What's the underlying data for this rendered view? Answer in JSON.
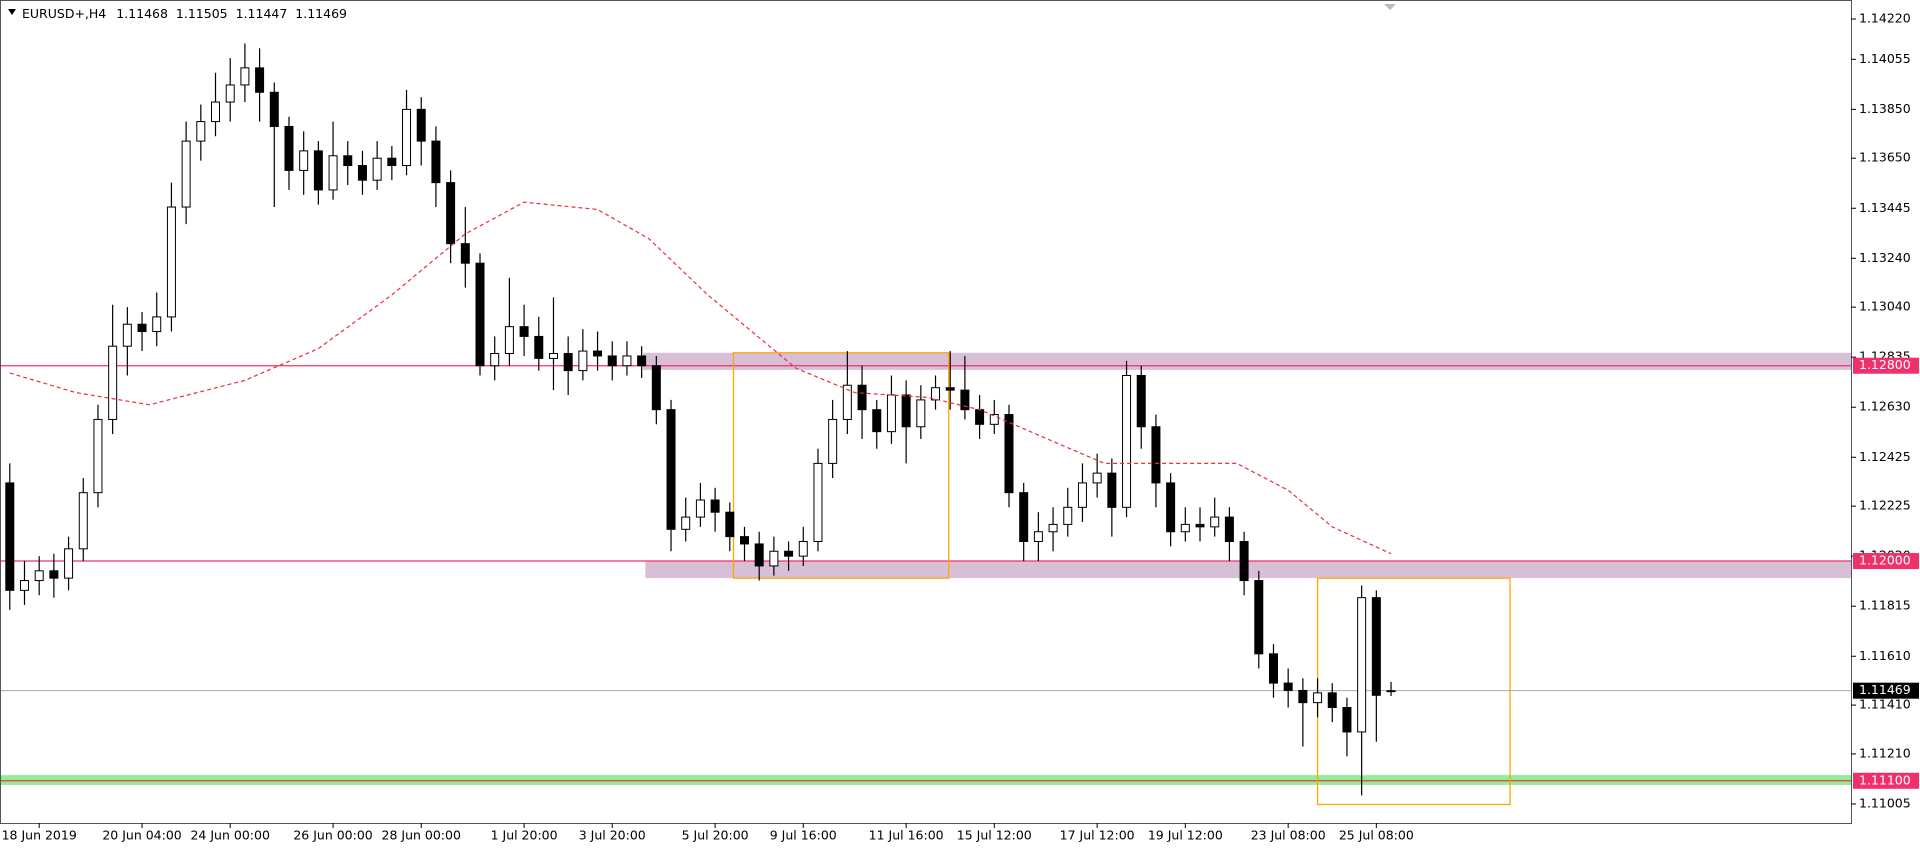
{
  "chart_data": {
    "type": "candlestick",
    "symbol": "EURUSD+,H4",
    "x": [
      null,
      null,
      "18 Jun 2019",
      null,
      null,
      null,
      null,
      null,
      null,
      "20 Jun 04:00",
      null,
      null,
      null,
      null,
      null,
      "24 Jun 00:00",
      null,
      null,
      null,
      null,
      null,
      null,
      "26 Jun 00:00",
      null,
      null,
      null,
      null,
      null,
      "28 Jun 00:00",
      null,
      null,
      null,
      null,
      null,
      null,
      "1 Jul 20:00",
      null,
      null,
      null,
      null,
      null,
      "3 Jul 20:00",
      null,
      null,
      null,
      null,
      null,
      null,
      "5 Jul 20:00",
      null,
      null,
      null,
      null,
      null,
      "9 Jul 16:00",
      null,
      null,
      null,
      null,
      null,
      null,
      "11 Jul 16:00",
      null,
      null,
      null,
      null,
      null,
      "15 Jul 12:00",
      null,
      null,
      null,
      null,
      null,
      null,
      "17 Jul 12:00",
      null,
      null,
      null,
      null,
      null,
      "19 Jul 12:00",
      null,
      null,
      null,
      null,
      null,
      null,
      "23 Jul 08:00",
      null,
      null,
      null,
      null,
      null,
      "25 Jul 08:00",
      null
    ],
    "open": [
      1.1232,
      1.1188,
      1.1192,
      1.1196,
      1.1193,
      1.1205,
      1.1228,
      1.1258,
      1.1288,
      1.1297,
      1.1294,
      1.13,
      1.1345,
      1.1372,
      1.138,
      1.1388,
      1.1395,
      1.1402,
      1.1392,
      1.1378,
      1.136,
      1.1368,
      1.1352,
      1.1366,
      1.1362,
      1.1356,
      1.1365,
      1.1362,
      1.1385,
      1.1372,
      1.1355,
      1.133,
      1.1322,
      1.128,
      1.1285,
      1.1296,
      1.1292,
      1.1283,
      1.1285,
      1.1278,
      1.1286,
      1.1284,
      1.128,
      1.1284,
      1.128,
      1.1262,
      1.1213,
      1.1218,
      1.1225,
      1.122,
      1.121,
      1.1207,
      1.1198,
      1.1204,
      1.1202,
      1.1208,
      1.124,
      1.1258,
      1.1272,
      1.1262,
      1.1253,
      1.1268,
      1.1255,
      1.1266,
      1.1271,
      1.127,
      1.1262,
      1.1256,
      1.126,
      1.1228,
      1.1208,
      1.1212,
      1.1215,
      1.1222,
      1.1232,
      1.1236,
      1.1222,
      1.1276,
      1.1255,
      1.1232,
      1.1212,
      1.1215,
      1.1214,
      1.1218,
      1.1208,
      1.1192,
      1.1162,
      1.115,
      1.1147,
      1.1142,
      1.1146,
      1.114,
      1.113,
      1.1185,
      1.11468
    ],
    "high": [
      1.124,
      1.12,
      1.1202,
      1.1203,
      1.121,
      1.1234,
      1.1264,
      1.1305,
      1.1304,
      1.1302,
      1.131,
      1.1355,
      1.138,
      1.1387,
      1.14,
      1.1406,
      1.1412,
      1.141,
      1.1396,
      1.1382,
      1.1376,
      1.1372,
      1.138,
      1.1372,
      1.1368,
      1.1372,
      1.137,
      1.1393,
      1.139,
      1.1378,
      1.136,
      1.1345,
      1.1326,
      1.1292,
      1.1316,
      1.1305,
      1.13,
      1.1308,
      1.1292,
      1.1295,
      1.1294,
      1.129,
      1.129,
      1.1288,
      1.1284,
      1.1266,
      1.1226,
      1.1232,
      1.123,
      1.1224,
      1.1214,
      1.1212,
      1.121,
      1.1208,
      1.1214,
      1.1246,
      1.1266,
      1.1286,
      1.128,
      1.1266,
      1.1276,
      1.1274,
      1.1272,
      1.1276,
      1.1286,
      1.1284,
      1.1268,
      1.1266,
      1.1264,
      1.1232,
      1.122,
      1.1222,
      1.123,
      1.124,
      1.1244,
      1.1242,
      1.1282,
      1.128,
      1.126,
      1.1236,
      1.1222,
      1.1222,
      1.1226,
      1.1222,
      1.1212,
      1.1196,
      1.1166,
      1.1156,
      1.1152,
      1.1152,
      1.115,
      1.1144,
      1.119,
      1.1188,
      1.11505
    ],
    "low": [
      1.118,
      1.1182,
      1.1186,
      1.1185,
      1.1188,
      1.12,
      1.1222,
      1.1252,
      1.1276,
      1.1286,
      1.1288,
      1.1294,
      1.1338,
      1.1364,
      1.1374,
      1.138,
      1.1388,
      1.138,
      1.1345,
      1.1352,
      1.135,
      1.1346,
      1.1348,
      1.1354,
      1.135,
      1.1352,
      1.1356,
      1.1358,
      1.1362,
      1.1345,
      1.1322,
      1.1312,
      1.1276,
      1.1274,
      1.128,
      1.1284,
      1.1278,
      1.127,
      1.1268,
      1.1274,
      1.1278,
      1.1274,
      1.1276,
      1.1275,
      1.1256,
      1.1204,
      1.1208,
      1.1214,
      1.1212,
      1.1204,
      1.12,
      1.1192,
      1.1194,
      1.1196,
      1.1198,
      1.1204,
      1.1234,
      1.1252,
      1.125,
      1.1246,
      1.1248,
      1.124,
      1.125,
      1.1262,
      1.1262,
      1.1258,
      1.125,
      1.1252,
      1.1222,
      1.12,
      1.12,
      1.1204,
      1.121,
      1.1216,
      1.1226,
      1.121,
      1.1218,
      1.1246,
      1.1222,
      1.1206,
      1.1208,
      1.1208,
      1.121,
      1.12,
      1.1186,
      1.1156,
      1.1144,
      1.114,
      1.1124,
      1.1136,
      1.1134,
      1.112,
      1.1104,
      1.1126,
      1.11447
    ],
    "close": [
      1.1188,
      1.1192,
      1.1196,
      1.1193,
      1.1205,
      1.1228,
      1.1258,
      1.1288,
      1.1297,
      1.1294,
      1.13,
      1.1345,
      1.1372,
      1.138,
      1.1388,
      1.1395,
      1.1402,
      1.1392,
      1.1378,
      1.136,
      1.1368,
      1.1352,
      1.1366,
      1.1362,
      1.1356,
      1.1365,
      1.1362,
      1.1385,
      1.1372,
      1.1355,
      1.133,
      1.1322,
      1.128,
      1.1285,
      1.1296,
      1.1292,
      1.1283,
      1.1285,
      1.1278,
      1.1286,
      1.1284,
      1.128,
      1.1284,
      1.128,
      1.1262,
      1.1213,
      1.1218,
      1.1225,
      1.122,
      1.121,
      1.1207,
      1.1198,
      1.1204,
      1.1202,
      1.1208,
      1.124,
      1.1258,
      1.1272,
      1.1262,
      1.1253,
      1.1268,
      1.1255,
      1.1266,
      1.1271,
      1.127,
      1.1262,
      1.1256,
      1.126,
      1.1228,
      1.1208,
      1.1212,
      1.1215,
      1.1222,
      1.1232,
      1.1236,
      1.1222,
      1.1276,
      1.1255,
      1.1232,
      1.1212,
      1.1215,
      1.1214,
      1.1218,
      1.1208,
      1.1192,
      1.1162,
      1.115,
      1.1147,
      1.1142,
      1.1146,
      1.114,
      1.113,
      1.1185,
      1.1145,
      1.11469
    ],
    "ma": {
      "color": "#e8303c",
      "x": [
        0,
        4.5,
        9.5,
        16,
        21,
        26,
        31,
        35,
        40,
        43.5,
        47.5,
        53.5,
        57.5,
        62.5,
        66,
        71,
        74.5,
        79.5,
        83.5,
        87,
        90,
        94
      ],
      "values": [
        1.1277,
        1.1269,
        1.1264,
        1.1274,
        1.1287,
        1.1309,
        1.1334,
        1.1347,
        1.1344,
        1.1332,
        1.1309,
        1.1279,
        1.1269,
        1.1267,
        1.1262,
        1.1249,
        1.124,
        1.124,
        1.124,
        1.1229,
        1.1214,
        1.1203
      ]
    },
    "zones": [
      {
        "from": 43.1,
        "to": null,
        "top": 1.12853,
        "bottom": 1.12783,
        "color": "#d8bfd8"
      },
      {
        "from": 43.25,
        "to": null,
        "top": 1.12,
        "bottom": 1.1193,
        "color": "#d8bfd8"
      },
      {
        "from": null,
        "to": null,
        "top": 1.11123,
        "bottom": 1.11083,
        "color": "#90ee90"
      }
    ],
    "boxes": [
      {
        "from": 49.25,
        "to": 63.9,
        "top": 1.12853,
        "bottom": 1.1193,
        "color": "#ffa500"
      },
      {
        "from": 89,
        "to": 102.1,
        "top": 1.1193,
        "bottom": 1.11003,
        "color": "#ffa500"
      }
    ],
    "levels": [
      {
        "value": 1.128,
        "label": "1.12800",
        "color": "#f0306a"
      },
      {
        "value": 1.12,
        "label": "1.12000",
        "color": "#f0306a"
      },
      {
        "value": 1.111,
        "label": "1.11100",
        "color": "#f0306a"
      }
    ],
    "ylim": [
      1.10927,
      1.14298
    ],
    "yticks": [
      {
        "value": 1.1422,
        "label": "1.14220"
      },
      1.14055,
      {
        "value": 1.1385,
        "label": "1.13850"
      },
      {
        "value": 1.1365,
        "label": "1.13650"
      },
      1.13445,
      {
        "value": 1.1324,
        "label": "1.13240"
      },
      {
        "value": 1.1304,
        "label": "1.13040"
      },
      1.12835,
      {
        "value": 1.1263,
        "label": "1.12630"
      },
      1.12425,
      1.12225,
      {
        "value": 1.1202,
        "label": "1.12020"
      },
      1.11815,
      {
        "value": 1.1161,
        "label": "1.11610"
      },
      {
        "value": 1.1141,
        "label": "1.11410"
      },
      {
        "value": 1.1121,
        "label": "1.11210"
      },
      1.11005
    ]
  }
}
